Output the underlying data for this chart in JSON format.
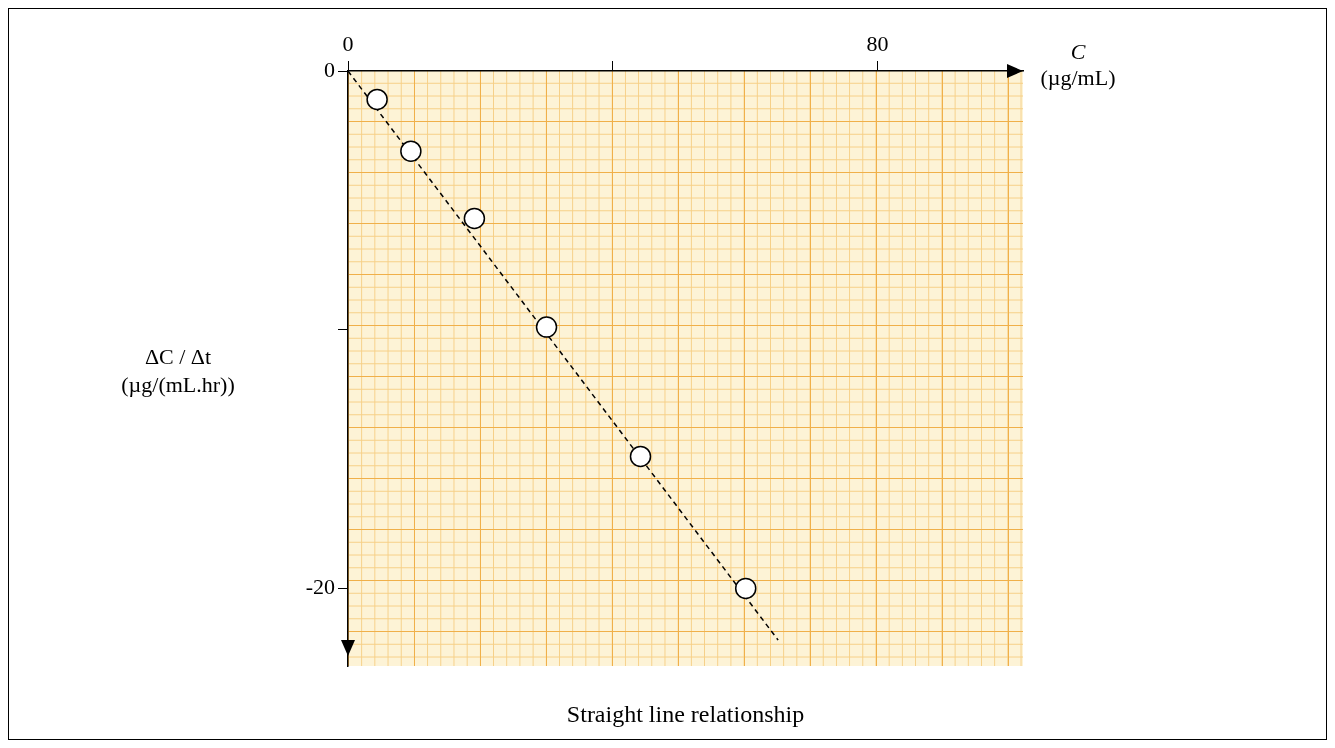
{
  "chart_data": {
    "type": "scatter",
    "xlabel": "C (µg/mL)",
    "ylabel": "ΔC / Δt (µg/(mL.hr))",
    "annotations": [
      "Straight line relationship"
    ],
    "xlim": [
      0,
      102
    ],
    "ylim": [
      -23,
      0
    ],
    "xticks": [
      0,
      {
        "value": 40,
        "label": null
      },
      80
    ],
    "yticks": [
      0,
      {
        "value": -10,
        "label": null
      },
      -20
    ],
    "marker": "circle",
    "legend": false,
    "grid": false,
    "series": [
      {
        "color": "#000000",
        "x": [
          4.4,
          9.5,
          19.1,
          30,
          44.2,
          60.1
        ],
        "values": [
          -1.1,
          -3.1,
          -5.7,
          -9.9,
          -14.9,
          -20
        ]
      },
      {
        "type": "line",
        "color": "#000000",
        "line_style": "dashed",
        "marker": "none",
        "x": [
          0,
          65
        ],
        "values": [
          0,
          -22
        ]
      }
    ]
  }
}
